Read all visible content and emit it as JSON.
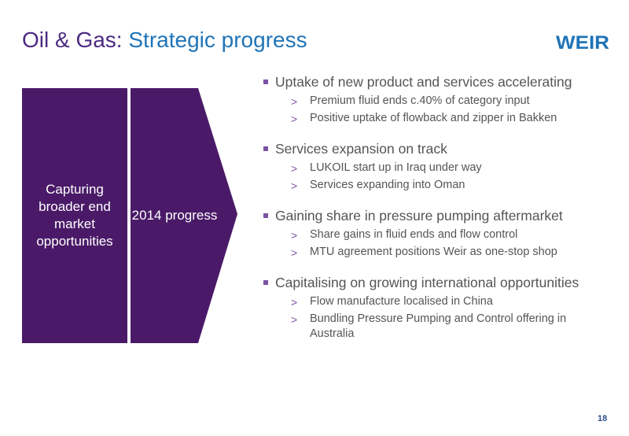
{
  "title": {
    "part1": "Oil & Gas:",
    "part2": "Strategic progress"
  },
  "logo": {
    "text": "WEIR",
    "color": "#1f74b8"
  },
  "panels": [
    {
      "text": "Capturing broader end market opportunities"
    },
    {
      "text": "2014 progress"
    }
  ],
  "bullets": [
    {
      "text": "Uptake of new product and services accelerating",
      "subs": [
        "Premium fluid ends c.40% of category input",
        "Positive uptake of flowback and zipper in Bakken"
      ]
    },
    {
      "text": "Services expansion on track",
      "subs": [
        "LUKOIL start up in Iraq under way",
        "Services expanding into Oman"
      ]
    },
    {
      "text": "Gaining share in pressure pumping aftermarket",
      "subs": [
        "Share gains in fluid ends and flow control",
        "MTU agreement positions Weir as one-stop shop"
      ]
    },
    {
      "text": "Capitalising on growing international opportunities",
      "subs": [
        "Flow manufacture localised in China",
        "Bundling Pressure Pumping and Control offering in Australia"
      ]
    }
  ],
  "sub_marker": ">",
  "page_number": "18",
  "colors": {
    "purple": "#4a1a68",
    "title_purple": "#4b2a82",
    "title_blue": "#1f74b8",
    "bullet_square": "#7c52a6"
  }
}
